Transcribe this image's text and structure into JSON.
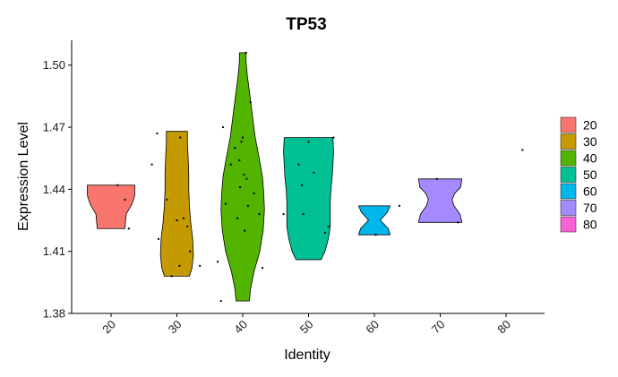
{
  "chart_data": {
    "type": "violin",
    "title": "TP53",
    "xlabel": "Identity",
    "ylabel": "Expression Level",
    "categories": [
      "20",
      "30",
      "40",
      "50",
      "60",
      "70",
      "80"
    ],
    "y_ticks": [
      "1.38",
      "1.41",
      "1.44",
      "1.47",
      "1.50"
    ],
    "ylim": [
      1.38,
      1.512
    ],
    "legend": {
      "position": "right",
      "entries": [
        {
          "label": "20",
          "color": "#F8766D"
        },
        {
          "label": "30",
          "color": "#C49A00"
        },
        {
          "label": "40",
          "color": "#53B400"
        },
        {
          "label": "50",
          "color": "#00C094"
        },
        {
          "label": "60",
          "color": "#00B6EB"
        },
        {
          "label": "70",
          "color": "#A58AFF"
        },
        {
          "label": "80",
          "color": "#FB61D7"
        }
      ]
    },
    "violins": [
      {
        "category": "20",
        "min": 1.421,
        "max": 1.442,
        "profile": [
          [
            1.421,
            0.42
          ],
          [
            1.428,
            0.46
          ],
          [
            1.433,
            0.64
          ],
          [
            1.437,
            0.72
          ],
          [
            1.442,
            0.72
          ]
        ]
      },
      {
        "category": "30",
        "min": 1.398,
        "max": 1.468,
        "profile": [
          [
            1.398,
            0.38
          ],
          [
            1.402,
            0.46
          ],
          [
            1.408,
            0.5
          ],
          [
            1.416,
            0.48
          ],
          [
            1.424,
            0.42
          ],
          [
            1.432,
            0.38
          ],
          [
            1.44,
            0.36
          ],
          [
            1.448,
            0.36
          ],
          [
            1.456,
            0.34
          ],
          [
            1.462,
            0.32
          ],
          [
            1.468,
            0.32
          ]
        ]
      },
      {
        "category": "40",
        "min": 1.386,
        "max": 1.506,
        "profile": [
          [
            1.386,
            0.2
          ],
          [
            1.392,
            0.24
          ],
          [
            1.4,
            0.34
          ],
          [
            1.41,
            0.52
          ],
          [
            1.42,
            0.62
          ],
          [
            1.43,
            0.66
          ],
          [
            1.438,
            0.64
          ],
          [
            1.446,
            0.6
          ],
          [
            1.455,
            0.5
          ],
          [
            1.465,
            0.38
          ],
          [
            1.475,
            0.3
          ],
          [
            1.485,
            0.22
          ],
          [
            1.495,
            0.14
          ],
          [
            1.502,
            0.1
          ],
          [
            1.506,
            0.1
          ]
        ]
      },
      {
        "category": "50",
        "min": 1.406,
        "max": 1.465,
        "profile": [
          [
            1.406,
            0.38
          ],
          [
            1.41,
            0.5
          ],
          [
            1.416,
            0.6
          ],
          [
            1.422,
            0.66
          ],
          [
            1.428,
            0.66
          ],
          [
            1.434,
            0.66
          ],
          [
            1.44,
            0.68
          ],
          [
            1.446,
            0.72
          ],
          [
            1.452,
            0.74
          ],
          [
            1.458,
            0.76
          ],
          [
            1.465,
            0.74
          ]
        ]
      },
      {
        "category": "60",
        "min": 1.418,
        "max": 1.432,
        "profile": [
          [
            1.418,
            0.48
          ],
          [
            1.421,
            0.42
          ],
          [
            1.425,
            0.18
          ],
          [
            1.429,
            0.4
          ],
          [
            1.432,
            0.48
          ]
        ]
      },
      {
        "category": "70",
        "min": 1.424,
        "max": 1.445,
        "profile": [
          [
            1.424,
            0.66
          ],
          [
            1.428,
            0.6
          ],
          [
            1.432,
            0.42
          ],
          [
            1.435,
            0.36
          ],
          [
            1.438,
            0.44
          ],
          [
            1.441,
            0.62
          ],
          [
            1.445,
            0.66
          ]
        ]
      },
      {
        "category": "80",
        "min": null,
        "max": null,
        "profile": []
      }
    ],
    "points": [
      {
        "category": "20",
        "offset": 0.1,
        "y": 1.442
      },
      {
        "category": "20",
        "offset": 0.21,
        "y": 1.435
      },
      {
        "category": "20",
        "offset": 0.27,
        "y": 1.421
      },
      {
        "category": "30",
        "offset": -0.38,
        "y": 1.452
      },
      {
        "category": "30",
        "offset": -0.3,
        "y": 1.467
      },
      {
        "category": "30",
        "offset": -0.28,
        "y": 1.416
      },
      {
        "category": "30",
        "offset": -0.15,
        "y": 1.435
      },
      {
        "category": "30",
        "offset": -0.08,
        "y": 1.398
      },
      {
        "category": "30",
        "offset": 0.0,
        "y": 1.425
      },
      {
        "category": "30",
        "offset": 0.04,
        "y": 1.403
      },
      {
        "category": "30",
        "offset": 0.05,
        "y": 1.465
      },
      {
        "category": "30",
        "offset": 0.1,
        "y": 1.426
      },
      {
        "category": "30",
        "offset": 0.16,
        "y": 1.422
      },
      {
        "category": "30",
        "offset": 0.2,
        "y": 1.41
      },
      {
        "category": "30",
        "offset": 0.35,
        "y": 1.403
      },
      {
        "category": "40",
        "offset": -0.38,
        "y": 1.405
      },
      {
        "category": "40",
        "offset": -0.33,
        "y": 1.386
      },
      {
        "category": "40",
        "offset": -0.3,
        "y": 1.47
      },
      {
        "category": "40",
        "offset": -0.26,
        "y": 1.433
      },
      {
        "category": "40",
        "offset": -0.18,
        "y": 1.452
      },
      {
        "category": "40",
        "offset": -0.12,
        "y": 1.46
      },
      {
        "category": "40",
        "offset": -0.08,
        "y": 1.426
      },
      {
        "category": "40",
        "offset": -0.05,
        "y": 1.454
      },
      {
        "category": "40",
        "offset": -0.04,
        "y": 1.441
      },
      {
        "category": "40",
        "offset": -0.02,
        "y": 1.463
      },
      {
        "category": "40",
        "offset": 0.0,
        "y": 1.465
      },
      {
        "category": "40",
        "offset": 0.02,
        "y": 1.447
      },
      {
        "category": "40",
        "offset": 0.03,
        "y": 1.42
      },
      {
        "category": "40",
        "offset": 0.05,
        "y": 1.506
      },
      {
        "category": "40",
        "offset": 0.06,
        "y": 1.445
      },
      {
        "category": "40",
        "offset": 0.08,
        "y": 1.432
      },
      {
        "category": "40",
        "offset": 0.12,
        "y": 1.482
      },
      {
        "category": "40",
        "offset": 0.17,
        "y": 1.438
      },
      {
        "category": "40",
        "offset": 0.25,
        "y": 1.428
      },
      {
        "category": "40",
        "offset": 0.3,
        "y": 1.402
      },
      {
        "category": "50",
        "offset": -0.38,
        "y": 1.428
      },
      {
        "category": "50",
        "offset": -0.15,
        "y": 1.452
      },
      {
        "category": "50",
        "offset": -0.1,
        "y": 1.442
      },
      {
        "category": "50",
        "offset": -0.08,
        "y": 1.428
      },
      {
        "category": "50",
        "offset": 0.0,
        "y": 1.463
      },
      {
        "category": "50",
        "offset": 0.08,
        "y": 1.448
      },
      {
        "category": "50",
        "offset": 0.25,
        "y": 1.419
      },
      {
        "category": "50",
        "offset": 0.3,
        "y": 1.422
      },
      {
        "category": "50",
        "offset": 0.38,
        "y": 1.465
      },
      {
        "category": "60",
        "offset": 0.02,
        "y": 1.418
      },
      {
        "category": "60",
        "offset": 0.38,
        "y": 1.432
      },
      {
        "category": "70",
        "offset": -0.05,
        "y": 1.445
      },
      {
        "category": "70",
        "offset": 0.27,
        "y": 1.424
      },
      {
        "category": "80",
        "offset": 0.25,
        "y": 1.459
      }
    ]
  }
}
